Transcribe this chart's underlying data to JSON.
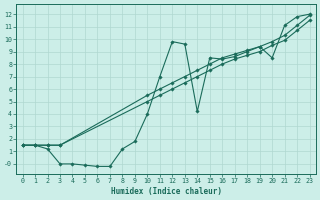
{
  "xlabel": "Humidex (Indice chaleur)",
  "bg_color": "#cceee8",
  "line_color": "#1a6b5a",
  "grid_color": "#b0d8d0",
  "xlim": [
    -0.5,
    23.5
  ],
  "ylim": [
    -0.8,
    12.8
  ],
  "xticks": [
    0,
    1,
    2,
    3,
    4,
    5,
    6,
    7,
    8,
    9,
    10,
    11,
    12,
    13,
    14,
    15,
    16,
    17,
    18,
    19,
    20,
    21,
    22,
    23
  ],
  "yticks": [
    0,
    1,
    2,
    3,
    4,
    5,
    6,
    7,
    8,
    9,
    10,
    11,
    12
  ],
  "line1_x": [
    0,
    1,
    2,
    3,
    4,
    5,
    6,
    7,
    8,
    9,
    10,
    11,
    12,
    13,
    14,
    15,
    16,
    17,
    18,
    19,
    20,
    21,
    22,
    23
  ],
  "line1_y": [
    1.5,
    1.5,
    1.2,
    0.0,
    0.0,
    -0.1,
    -0.2,
    -0.2,
    1.2,
    1.8,
    4.0,
    7.0,
    9.8,
    9.6,
    4.2,
    8.5,
    8.4,
    8.6,
    9.0,
    9.4,
    8.5,
    11.1,
    11.8,
    12.0
  ],
  "line2_x": [
    0,
    1,
    2,
    3,
    10,
    11,
    12,
    13,
    14,
    15,
    16,
    17,
    18,
    19,
    20,
    21,
    22,
    23
  ],
  "line2_y": [
    1.5,
    1.5,
    1.5,
    1.5,
    5.5,
    6.0,
    6.5,
    7.0,
    7.5,
    8.0,
    8.5,
    8.8,
    9.1,
    9.4,
    9.8,
    10.3,
    11.1,
    11.9
  ],
  "line3_x": [
    0,
    1,
    2,
    3,
    10,
    11,
    12,
    13,
    14,
    15,
    16,
    17,
    18,
    19,
    20,
    21,
    22,
    23
  ],
  "line3_y": [
    1.5,
    1.5,
    1.5,
    1.5,
    5.0,
    5.5,
    6.0,
    6.5,
    7.0,
    7.5,
    8.0,
    8.4,
    8.7,
    9.0,
    9.5,
    9.9,
    10.7,
    11.5
  ]
}
